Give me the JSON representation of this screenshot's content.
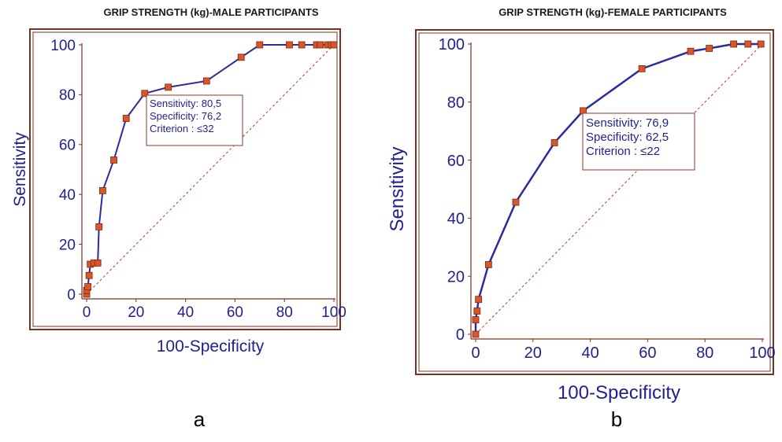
{
  "charts": {
    "a": {
      "panel_letter": "a",
      "chart_data": {
        "type": "line",
        "title": "GRIP STRENGTH (kg)-MALE PARTICIPANTS",
        "xlabel": "100-Specificity",
        "ylabel": "Sensitivity",
        "xlim": [
          0,
          100
        ],
        "ylim": [
          0,
          100
        ],
        "xticks": [
          "0",
          "20",
          "40",
          "60",
          "80",
          "100"
        ],
        "yticks": [
          "0",
          "20",
          "40",
          "60",
          "80",
          "100"
        ],
        "grid": false,
        "diagonal_reference": true,
        "series": [
          {
            "x": [
              0,
              0,
              0.5,
              1,
              1.5,
              3,
              4.5,
              5,
              6.5,
              11,
              16,
              23.5,
              33,
              48.5,
              62.5,
              70,
              82,
              87,
              93,
              94.5,
              97.5,
              99,
              100
            ],
            "y": [
              0,
              1.5,
              3,
              7.5,
              12,
              12.5,
              12.5,
              27,
              41.5,
              53.8,
              70.5,
              80.5,
              83,
              85.5,
              95,
              100,
              100,
              100,
              100,
              100,
              100,
              100,
              100
            ]
          }
        ],
        "annotation": {
          "lines": [
            "Sensitivity: 80,5",
            "Specificity: 76,2",
            "Criterion : ≤32"
          ],
          "anchor_point": [
            23.5,
            80.5
          ]
        }
      }
    },
    "b": {
      "panel_letter": "b",
      "chart_data": {
        "type": "line",
        "title": "GRIP STRENGTH (kg)-FEMALE PARTICIPANTS",
        "xlabel": "100-Specificity",
        "ylabel": "Sensitivity",
        "xlim": [
          0,
          100
        ],
        "ylim": [
          0,
          100
        ],
        "xticks": [
          "0",
          "20",
          "40",
          "60",
          "80",
          "100"
        ],
        "yticks": [
          "0",
          "20",
          "40",
          "60",
          "80",
          "100"
        ],
        "grid": false,
        "diagonal_reference": true,
        "series": [
          {
            "x": [
              0,
              0,
              0.5,
              1,
              4.5,
              14,
              27.5,
              37.5,
              58,
              75,
              81.5,
              90,
              95,
              99.5
            ],
            "y": [
              0,
              5,
              8,
              12,
              24,
              45.5,
              66,
              77,
              91.5,
              97.5,
              98.5,
              100,
              100,
              100
            ]
          }
        ],
        "annotation": {
          "lines": [
            "Sensitivity: 76,9",
            "Specificity: 62,5",
            "Criterion : ≤22"
          ],
          "anchor_point": [
            37.5,
            77
          ]
        }
      }
    }
  },
  "colors": {
    "line": "#2b2b9e",
    "marker": "#d9552a",
    "marker_edge": "#7a2a10",
    "axis_frame": "#7a3020",
    "tick_text": "#1f1f8f",
    "diagonal": "#b03a2a",
    "annotation_border": "#8a3a2a"
  }
}
